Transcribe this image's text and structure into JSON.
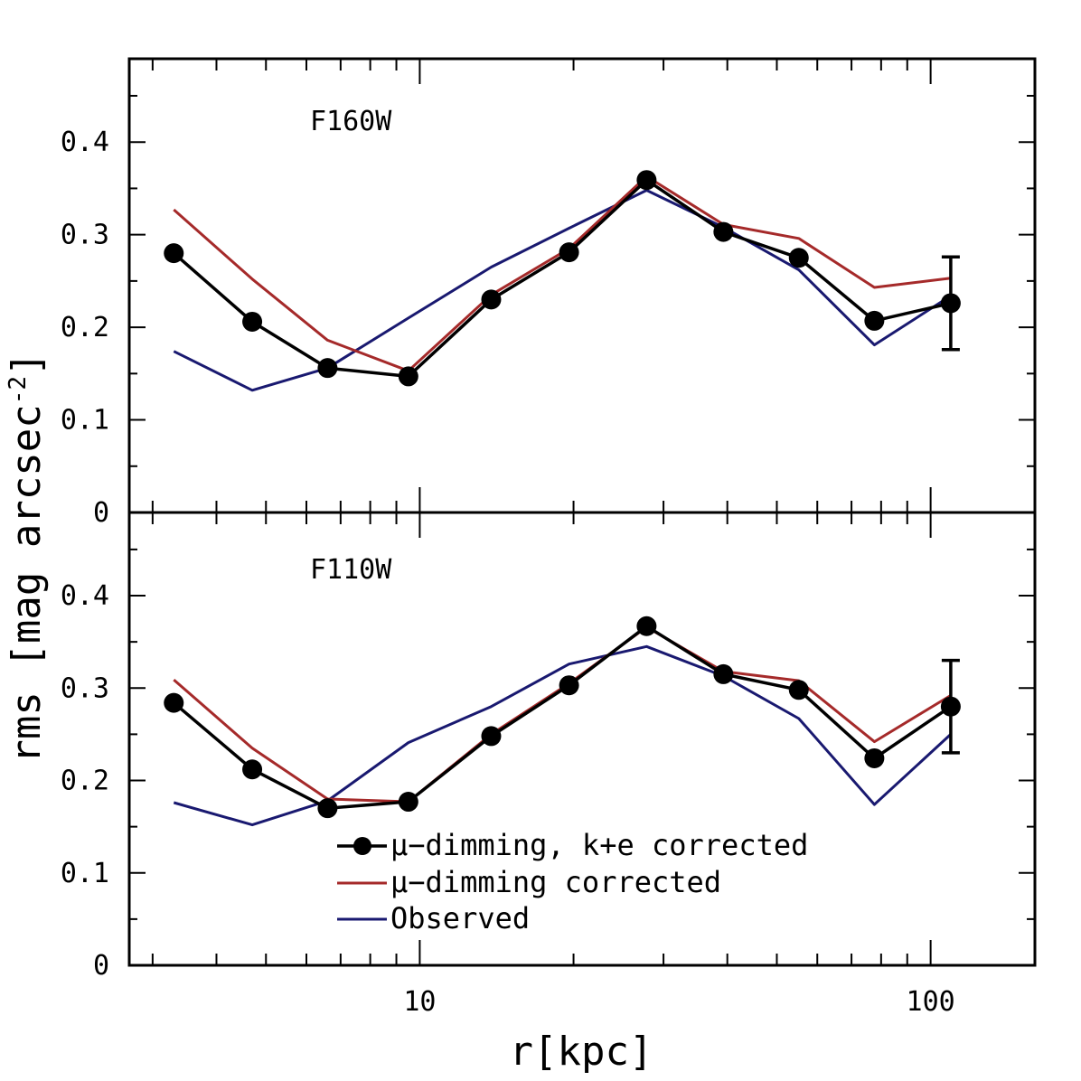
{
  "chart_data": {
    "type": "line",
    "xscale": "log",
    "xlim": [
      2.7,
      160
    ],
    "xlabel": "r[kpc]",
    "ylabel": "rms [mag arcsec",
    "ylabel_sup": "-2",
    "ylabel_close": "]",
    "x": [
      3.3,
      4.7,
      6.6,
      9.5,
      13.8,
      19.6,
      27.8,
      39.3,
      55.2,
      77.6,
      109.5
    ],
    "x_ticks": [
      10,
      100
    ],
    "x_tick_labels": [
      "10",
      "100"
    ],
    "panels": [
      {
        "name": "F160W",
        "ylim": [
          0,
          0.49
        ],
        "y_ticks": [
          0,
          0.1,
          0.2,
          0.3,
          0.4
        ],
        "y_tick_labels": [
          "0",
          "0.1",
          "0.2",
          "0.3",
          "0.4"
        ],
        "series": [
          {
            "name": "μ-dimming, k+e corrected",
            "color": "#000000",
            "values": [
              0.28,
              0.206,
              0.156,
              0.147,
              0.23,
              0.281,
              0.359,
              0.303,
              0.275,
              0.207,
              0.226
            ],
            "markers": true
          },
          {
            "name": "μ-dimming corrected",
            "color": "#a52a2a",
            "values": [
              0.327,
              0.252,
              0.186,
              0.153,
              0.235,
              0.285,
              0.363,
              0.311,
              0.296,
              0.243,
              0.253
            ],
            "markers": false
          },
          {
            "name": "Observed",
            "color": "#191970",
            "values": [
              0.174,
              0.132,
              0.156,
              0.21,
              0.265,
              0.307,
              0.348,
              0.308,
              0.262,
              0.181,
              0.234
            ],
            "markers": false
          }
        ],
        "error_bar": {
          "x": 109.5,
          "y": 0.226,
          "low": 0.176,
          "high": 0.276
        }
      },
      {
        "name": "F110W",
        "ylim": [
          0,
          0.49
        ],
        "y_ticks": [
          0,
          0.1,
          0.2,
          0.3,
          0.4
        ],
        "y_tick_labels": [
          "0",
          "0.1",
          "0.2",
          "0.3",
          "0.4"
        ],
        "series": [
          {
            "name": "μ-dimming, k+e corrected",
            "color": "#000000",
            "values": [
              0.284,
              0.212,
              0.17,
              0.177,
              0.248,
              0.303,
              0.367,
              0.315,
              0.298,
              0.224,
              0.28
            ],
            "markers": true
          },
          {
            "name": "μ-dimming corrected",
            "color": "#a52a2a",
            "values": [
              0.309,
              0.235,
              0.18,
              0.177,
              0.25,
              0.305,
              0.366,
              0.318,
              0.308,
              0.242,
              0.292
            ],
            "markers": false
          },
          {
            "name": "Observed",
            "color": "#191970",
            "values": [
              0.176,
              0.152,
              0.178,
              0.241,
              0.28,
              0.326,
              0.345,
              0.313,
              0.267,
              0.174,
              0.25
            ],
            "markers": false
          }
        ],
        "error_bar": {
          "x": 109.5,
          "y": 0.28,
          "low": 0.23,
          "high": 0.33
        }
      }
    ],
    "legend": {
      "position": "bottom-center of lower panel",
      "entries": [
        {
          "label": "μ−dimming, k+e corrected",
          "color": "#000000",
          "marker": true
        },
        {
          "label": "μ−dimming corrected",
          "color": "#a52a2a",
          "marker": false
        },
        {
          "label": "Observed",
          "color": "#191970",
          "marker": false
        }
      ]
    }
  }
}
